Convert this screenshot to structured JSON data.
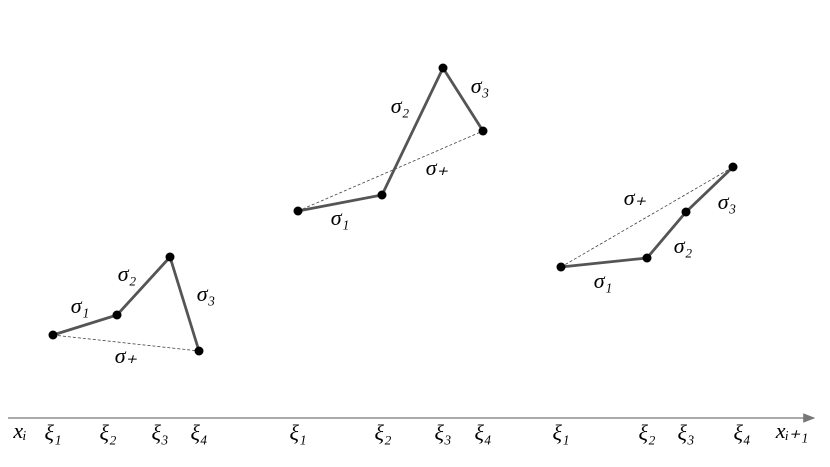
{
  "panels": [
    {
      "segment_labels": [
        "σ₁",
        "σ₂",
        "σ₃"
      ],
      "chord_label": "σ₊"
    },
    {
      "segment_labels": [
        "σ₁",
        "σ₂",
        "σ₃"
      ],
      "chord_label": "σ₊"
    },
    {
      "segment_labels": [
        "σ₁",
        "σ₂",
        "σ₃"
      ],
      "chord_label": "σ₊"
    }
  ],
  "axis": {
    "start_label": "xᵢ",
    "end_label": "xᵢ₊₁",
    "groups": [
      [
        "ξ₁",
        "ξ₂",
        "ξ₃",
        "ξ₄"
      ],
      [
        "ξ₁",
        "ξ₂",
        "ξ₃",
        "ξ₄"
      ],
      [
        "ξ₁",
        "ξ₂",
        "ξ₃",
        "ξ₄"
      ]
    ]
  }
}
